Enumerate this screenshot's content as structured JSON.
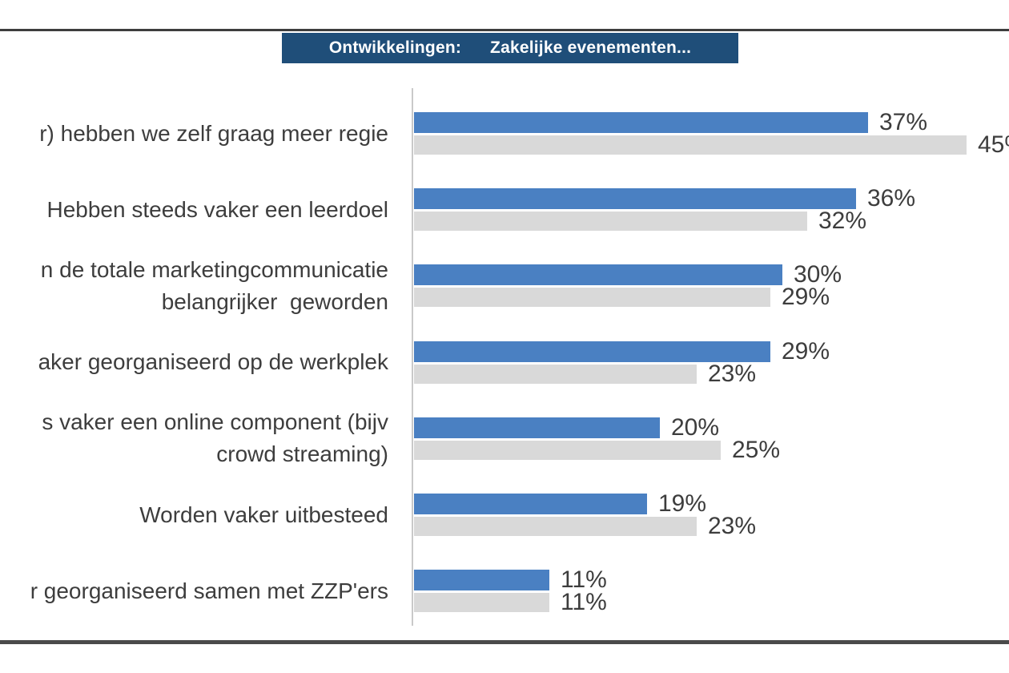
{
  "header": {
    "rule_color": "#3d3d3d",
    "title_box": {
      "label_left": "Ontwikkelingen:",
      "label_right": "Zakelijke evenementen...",
      "background": "#1f4e79",
      "text_color": "#ffffff"
    }
  },
  "footer": {
    "rule_color": "#4a4a4a"
  },
  "chart_data": {
    "type": "bar",
    "orientation": "horizontal",
    "title": "Ontwikkelingen: Zakelijke evenementen...",
    "value_suffix": "%",
    "xlim": [
      0,
      48
    ],
    "grid": false,
    "legend": false,
    "axis_color": "#c9c9c9",
    "label_color": "#3d3d3d",
    "categories": [
      "r) hebben we zelf graag meer regie",
      "Hebben steeds vaker een leerdoel",
      "n de totale marketingcommunicatie\nbelangrijker  geworden",
      "aker georganiseerd op de werkplek",
      "s vaker een online component (bijv\ncrowd streaming)",
      "Worden vaker uitbesteed",
      "r georganiseerd samen met ZZP'ers"
    ],
    "series": [
      {
        "name": "blue",
        "color": "#4a80c2",
        "values": [
          37,
          36,
          30,
          29,
          20,
          19,
          11
        ]
      },
      {
        "name": "gray",
        "color": "#d9d9d9",
        "values": [
          45,
          32,
          29,
          23,
          25,
          23,
          11
        ]
      }
    ]
  }
}
